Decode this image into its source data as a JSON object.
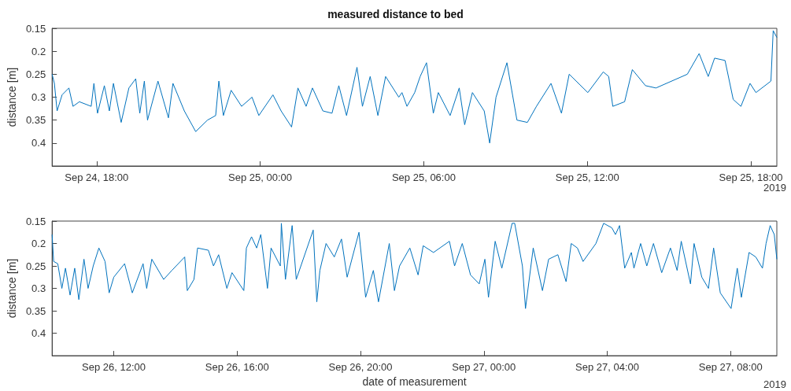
{
  "chart_data": [
    {
      "type": "line",
      "title": "measured distance to bed",
      "ylabel": "distance [m]",
      "annotations": [
        "2019"
      ],
      "grid": false,
      "marker": "none",
      "line_style": "solid",
      "xlim": [
        "2019-09-24T16:22",
        "2019-09-25T18:57"
      ],
      "ylim": [
        0.45,
        0.15
      ],
      "yticks": [
        0.15,
        0.2,
        0.25,
        0.3,
        0.35,
        0.4
      ],
      "xticks": [
        {
          "value": "2019-09-24T18:00",
          "label": "Sep 24, 18:00"
        },
        {
          "value": "2019-09-25T00:00",
          "label": "Sep 25, 00:00"
        },
        {
          "value": "2019-09-25T06:00",
          "label": "Sep 25, 06:00"
        },
        {
          "value": "2019-09-25T12:00",
          "label": "Sep 25, 12:00"
        },
        {
          "value": "2019-09-25T18:00",
          "label": "Sep 25, 18:00"
        }
      ],
      "x": [
        "2019-09-24T16:22",
        "2019-09-24T16:27",
        "2019-09-24T16:33",
        "2019-09-24T16:44",
        "2019-09-24T16:59",
        "2019-09-24T17:08",
        "2019-09-24T17:22",
        "2019-09-24T17:48",
        "2019-09-24T17:54",
        "2019-09-24T18:02",
        "2019-09-24T18:17",
        "2019-09-24T18:28",
        "2019-09-24T18:37",
        "2019-09-24T18:54",
        "2019-09-24T19:11",
        "2019-09-24T19:26",
        "2019-09-24T19:35",
        "2019-09-24T19:45",
        "2019-09-24T19:52",
        "2019-09-24T20:15",
        "2019-09-24T20:38",
        "2019-09-24T20:48",
        "2019-09-24T21:13",
        "2019-09-24T21:38",
        "2019-09-24T22:04",
        "2019-09-24T22:22",
        "2019-09-24T22:29",
        "2019-09-24T22:39",
        "2019-09-24T22:56",
        "2019-09-24T23:19",
        "2019-09-24T23:42",
        "2019-09-24T23:57",
        "2019-09-25T00:28",
        "2019-09-25T00:46",
        "2019-09-25T01:09",
        "2019-09-25T01:23",
        "2019-09-25T01:41",
        "2019-09-25T01:55",
        "2019-09-25T02:18",
        "2019-09-25T02:38",
        "2019-09-25T02:53",
        "2019-09-25T03:10",
        "2019-09-25T03:33",
        "2019-09-25T03:45",
        "2019-09-25T04:02",
        "2019-09-25T04:19",
        "2019-09-25T04:36",
        "2019-09-25T05:05",
        "2019-09-25T05:12",
        "2019-09-25T05:23",
        "2019-09-25T05:40",
        "2019-09-25T05:52",
        "2019-09-25T06:06",
        "2019-09-25T06:21",
        "2019-09-25T06:32",
        "2019-09-25T06:58",
        "2019-09-25T07:18",
        "2019-09-25T07:30",
        "2019-09-25T07:47",
        "2019-09-25T08:13",
        "2019-09-25T08:25",
        "2019-09-25T08:39",
        "2019-09-25T09:03",
        "2019-09-25T09:25",
        "2019-09-25T09:48",
        "2019-09-25T10:08",
        "2019-09-25T10:40",
        "2019-09-25T11:03",
        "2019-09-25T11:20",
        "2019-09-25T12:01",
        "2019-09-25T12:35",
        "2019-09-25T12:47",
        "2019-09-25T12:56",
        "2019-09-25T13:22",
        "2019-09-25T13:39",
        "2019-09-25T14:08",
        "2019-09-25T14:31",
        "2019-09-25T15:17",
        "2019-09-25T15:40",
        "2019-09-25T16:06",
        "2019-09-25T16:26",
        "2019-09-25T16:40",
        "2019-09-25T17:03",
        "2019-09-25T17:21",
        "2019-09-25T17:38",
        "2019-09-25T17:58",
        "2019-09-25T18:11",
        "2019-09-25T18:44",
        "2019-09-25T18:49",
        "2019-09-25T18:57"
      ],
      "series": [
        {
          "color": "#0072bd",
          "values": [
            0.25,
            0.27,
            0.33,
            0.295,
            0.28,
            0.32,
            0.31,
            0.32,
            0.27,
            0.335,
            0.275,
            0.33,
            0.27,
            0.355,
            0.28,
            0.26,
            0.335,
            0.265,
            0.35,
            0.265,
            0.345,
            0.27,
            0.33,
            0.375,
            0.35,
            0.34,
            0.265,
            0.34,
            0.285,
            0.32,
            0.3,
            0.34,
            0.295,
            0.33,
            0.365,
            0.28,
            0.32,
            0.28,
            0.33,
            0.335,
            0.275,
            0.34,
            0.235,
            0.32,
            0.255,
            0.34,
            0.255,
            0.3,
            0.29,
            0.32,
            0.29,
            0.255,
            0.225,
            0.335,
            0.29,
            0.34,
            0.28,
            0.36,
            0.29,
            0.33,
            0.4,
            0.3,
            0.225,
            0.35,
            0.355,
            0.32,
            0.27,
            0.335,
            0.25,
            0.29,
            0.245,
            0.255,
            0.32,
            0.31,
            0.24,
            0.275,
            0.28,
            0.26,
            0.25,
            0.205,
            0.255,
            0.215,
            0.22,
            0.305,
            0.32,
            0.27,
            0.29,
            0.265,
            0.155,
            0.17
          ]
        }
      ]
    },
    {
      "type": "line",
      "xlabel": "date of measurement",
      "ylabel": "distance [m]",
      "annotations": [
        "2019"
      ],
      "grid": false,
      "marker": "none",
      "line_style": "solid",
      "xlim": [
        "2019-09-26T10:00",
        "2019-09-27T09:30"
      ],
      "ylim": [
        0.45,
        0.15
      ],
      "yticks": [
        0.15,
        0.2,
        0.25,
        0.3,
        0.35,
        0.4
      ],
      "xticks": [
        {
          "value": "2019-09-26T12:00",
          "label": "Sep 26, 12:00"
        },
        {
          "value": "2019-09-26T16:00",
          "label": "Sep 26, 16:00"
        },
        {
          "value": "2019-09-26T20:00",
          "label": "Sep 26, 20:00"
        },
        {
          "value": "2019-09-27T00:00",
          "label": "Sep 27, 00:00"
        },
        {
          "value": "2019-09-27T04:00",
          "label": "Sep 27, 04:00"
        },
        {
          "value": "2019-09-27T08:00",
          "label": "Sep 27, 08:00"
        }
      ],
      "x": [
        "2019-09-26T10:00",
        "2019-09-26T10:03",
        "2019-09-26T10:11",
        "2019-09-26T10:19",
        "2019-09-26T10:26",
        "2019-09-26T10:35",
        "2019-09-26T10:44",
        "2019-09-26T10:52",
        "2019-09-26T11:02",
        "2019-09-26T11:10",
        "2019-09-26T11:20",
        "2019-09-26T11:31",
        "2019-09-26T11:43",
        "2019-09-26T11:51",
        "2019-09-26T12:00",
        "2019-09-26T12:21",
        "2019-09-26T12:36",
        "2019-09-26T12:57",
        "2019-09-26T13:04",
        "2019-09-26T13:14",
        "2019-09-26T13:37",
        "2019-09-26T13:53",
        "2019-09-26T14:18",
        "2019-09-26T14:23",
        "2019-09-26T14:36",
        "2019-09-26T14:43",
        "2019-09-26T15:04",
        "2019-09-26T15:14",
        "2019-09-26T15:24",
        "2019-09-26T15:40",
        "2019-09-26T15:50",
        "2019-09-26T16:13",
        "2019-09-26T16:18",
        "2019-09-26T16:28",
        "2019-09-26T16:38",
        "2019-09-26T16:46",
        "2019-09-26T16:59",
        "2019-09-26T17:06",
        "2019-09-26T17:24",
        "2019-09-26T17:26",
        "2019-09-26T17:34",
        "2019-09-26T17:47",
        "2019-09-26T17:55",
        "2019-09-26T18:28",
        "2019-09-26T18:35",
        "2019-09-26T18:41",
        "2019-09-26T18:53",
        "2019-09-26T19:09",
        "2019-09-26T19:23",
        "2019-09-26T19:34",
        "2019-09-26T19:57",
        "2019-09-26T20:10",
        "2019-09-26T20:25",
        "2019-09-26T20:35",
        "2019-09-26T20:56",
        "2019-09-26T21:06",
        "2019-09-26T21:16",
        "2019-09-26T21:36",
        "2019-09-26T21:52",
        "2019-09-26T22:02",
        "2019-09-26T22:22",
        "2019-09-26T22:53",
        "2019-09-26T23:03",
        "2019-09-26T23:18",
        "2019-09-26T23:34",
        "2019-09-26T23:51",
        "2019-09-27T00:02",
        "2019-09-27T00:09",
        "2019-09-27T00:22",
        "2019-09-27T00:35",
        "2019-09-27T00:55",
        "2019-09-27T01:00",
        "2019-09-27T01:15",
        "2019-09-27T01:21",
        "2019-09-27T01:36",
        "2019-09-27T01:54",
        "2019-09-27T02:06",
        "2019-09-27T02:24",
        "2019-09-27T02:40",
        "2019-09-27T02:50",
        "2019-09-27T03:02",
        "2019-09-27T03:13",
        "2019-09-27T03:38",
        "2019-09-27T03:53",
        "2019-09-27T04:09",
        "2019-09-27T04:16",
        "2019-09-27T04:24",
        "2019-09-27T04:34",
        "2019-09-27T04:47",
        "2019-09-27T04:52",
        "2019-09-27T05:05",
        "2019-09-27T05:17",
        "2019-09-27T05:30",
        "2019-09-27T05:46",
        "2019-09-27T06:03",
        "2019-09-27T06:16",
        "2019-09-27T06:24",
        "2019-09-27T06:42",
        "2019-09-27T06:49",
        "2019-09-27T07:04",
        "2019-09-27T07:17",
        "2019-09-27T07:27",
        "2019-09-27T07:40",
        "2019-09-27T08:01",
        "2019-09-27T08:13",
        "2019-09-27T08:21",
        "2019-09-27T08:36",
        "2019-09-27T08:49",
        "2019-09-27T09:02",
        "2019-09-27T09:09",
        "2019-09-27T09:17",
        "2019-09-27T09:25",
        "2019-09-27T09:30"
      ],
      "series": [
        {
          "color": "#0072bd",
          "values": [
            0.18,
            0.24,
            0.245,
            0.3,
            0.255,
            0.315,
            0.255,
            0.325,
            0.235,
            0.3,
            0.25,
            0.21,
            0.24,
            0.31,
            0.275,
            0.245,
            0.31,
            0.245,
            0.3,
            0.235,
            0.28,
            0.26,
            0.23,
            0.305,
            0.28,
            0.21,
            0.215,
            0.25,
            0.225,
            0.3,
            0.265,
            0.305,
            0.21,
            0.185,
            0.21,
            0.18,
            0.3,
            0.21,
            0.25,
            0.155,
            0.28,
            0.16,
            0.28,
            0.17,
            0.33,
            0.26,
            0.2,
            0.23,
            0.19,
            0.275,
            0.175,
            0.32,
            0.26,
            0.33,
            0.2,
            0.305,
            0.25,
            0.21,
            0.27,
            0.205,
            0.22,
            0.195,
            0.25,
            0.2,
            0.27,
            0.29,
            0.235,
            0.32,
            0.195,
            0.255,
            0.155,
            0.155,
            0.25,
            0.345,
            0.21,
            0.305,
            0.235,
            0.225,
            0.285,
            0.2,
            0.21,
            0.24,
            0.2,
            0.155,
            0.165,
            0.18,
            0.16,
            0.255,
            0.22,
            0.255,
            0.2,
            0.25,
            0.2,
            0.265,
            0.21,
            0.26,
            0.195,
            0.29,
            0.2,
            0.275,
            0.3,
            0.21,
            0.31,
            0.345,
            0.255,
            0.32,
            0.22,
            0.23,
            0.255,
            0.2,
            0.16,
            0.18,
            0.235
          ]
        }
      ]
    }
  ]
}
